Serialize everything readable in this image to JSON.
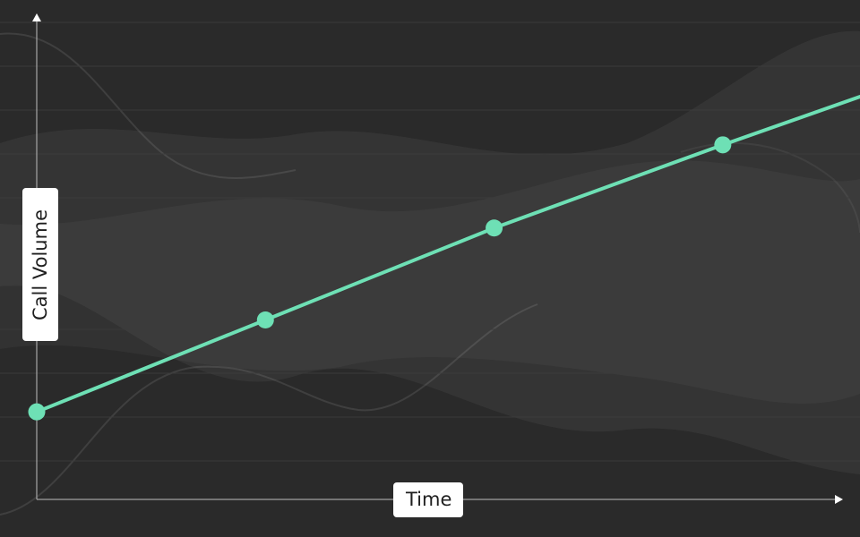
{
  "chart_data": {
    "type": "line",
    "title": "",
    "xlabel": "Time",
    "ylabel": "Call Volume",
    "x": [
      0,
      1,
      2,
      3
    ],
    "series": [
      {
        "values": [
          1.0,
          2.05,
          3.1,
          4.05
        ]
      }
    ],
    "trend_end": {
      "x": 3.6,
      "y": 4.6
    },
    "xlim": [
      0,
      3.6
    ],
    "ylim": [
      0,
      5.5
    ],
    "grid": true,
    "ticks_shown": false,
    "legend": "none",
    "colors": {
      "background": "#2a2a2a",
      "line": "#6ee0b5",
      "axis": "#bdbdbd",
      "grid": "#3b3b3b",
      "decor": "#4a4f4c"
    }
  }
}
